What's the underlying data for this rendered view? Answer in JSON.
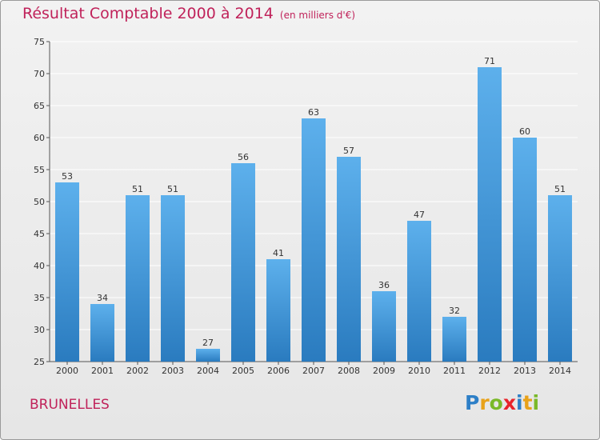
{
  "title": "Résultat Comptable 2000 à 2014",
  "unit_note": "(en milliers d'€)",
  "commune": "BRUNELLES",
  "logo": {
    "letters": [
      "P",
      "r",
      "o",
      "x",
      "i",
      "t",
      "i"
    ],
    "colors": [
      "#2d7fc7",
      "#e8a21a",
      "#7ab929",
      "#e8242b",
      "#2d7fc7",
      "#e8a21a",
      "#7ab929"
    ]
  },
  "colors": {
    "bar_top": "#5db0ec",
    "bar_bottom": "#2a7bbf",
    "grid": "#ffffff",
    "axis_text": "#333333",
    "title": "#c0225a"
  },
  "chart_data": {
    "type": "bar",
    "title": "Résultat Comptable 2000 à 2014",
    "xlabel": "",
    "ylabel": "",
    "categories": [
      "2000",
      "2001",
      "2002",
      "2003",
      "2004",
      "2005",
      "2006",
      "2007",
      "2008",
      "2009",
      "2010",
      "2011",
      "2012",
      "2013",
      "2014"
    ],
    "values": [
      53,
      34,
      51,
      51,
      27,
      56,
      41,
      63,
      57,
      36,
      47,
      32,
      71,
      60,
      51
    ],
    "ylim": [
      25,
      75
    ],
    "yticks": [
      25,
      30,
      35,
      40,
      45,
      50,
      55,
      60,
      65,
      70,
      75
    ],
    "grid": true,
    "data_labels": true
  }
}
